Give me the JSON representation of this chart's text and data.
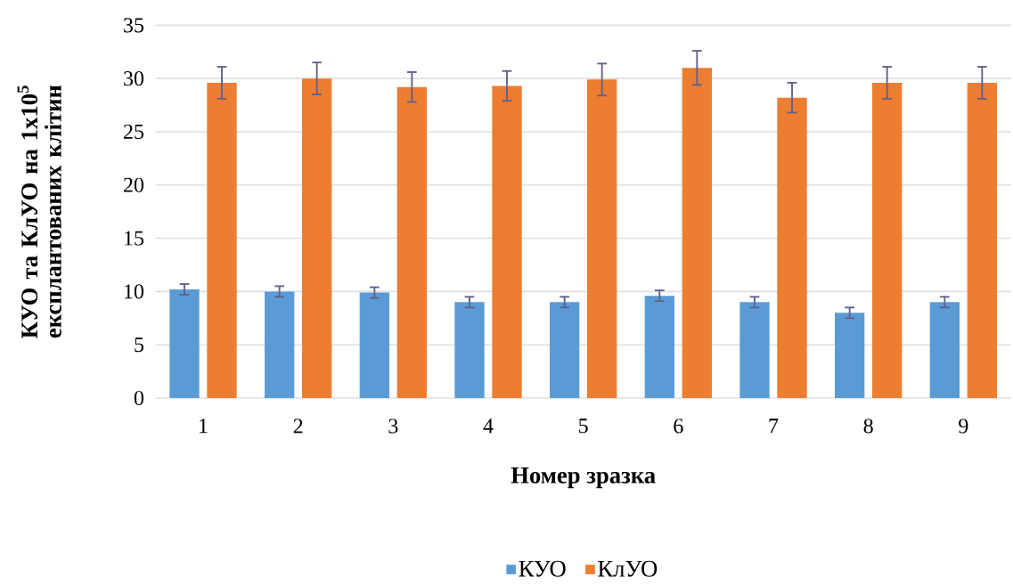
{
  "chart_data": {
    "type": "bar",
    "xlabel": "Номер зразка",
    "ylabel": "КУО та КлУО на 1x10$^{5}$ експлантованих клітин",
    "categories": [
      "1",
      "2",
      "3",
      "4",
      "5",
      "6",
      "7",
      "8",
      "9"
    ],
    "series": [
      {
        "name": "КУО",
        "color": "#5b9bd5",
        "values": [
          10.2,
          10,
          9.9,
          9,
          9,
          9.6,
          9,
          8,
          9
        ],
        "errors": [
          0.5,
          0.5,
          0.5,
          0.5,
          0.5,
          0.5,
          0.5,
          0.5,
          0.5
        ]
      },
      {
        "name": "КлУО",
        "color": "#ed7d31",
        "values": [
          29.6,
          30,
          29.2,
          29.3,
          29.9,
          31,
          28.2,
          29.6,
          29.6
        ],
        "errors": [
          1.5,
          1.5,
          1.4,
          1.4,
          1.5,
          1.6,
          1.4,
          1.5,
          1.5
        ]
      }
    ],
    "ylim": [
      0,
      35
    ],
    "yticks": [
      0,
      5,
      10,
      15,
      20,
      25,
      30,
      35
    ],
    "grid": "y",
    "legend": "bottom"
  }
}
